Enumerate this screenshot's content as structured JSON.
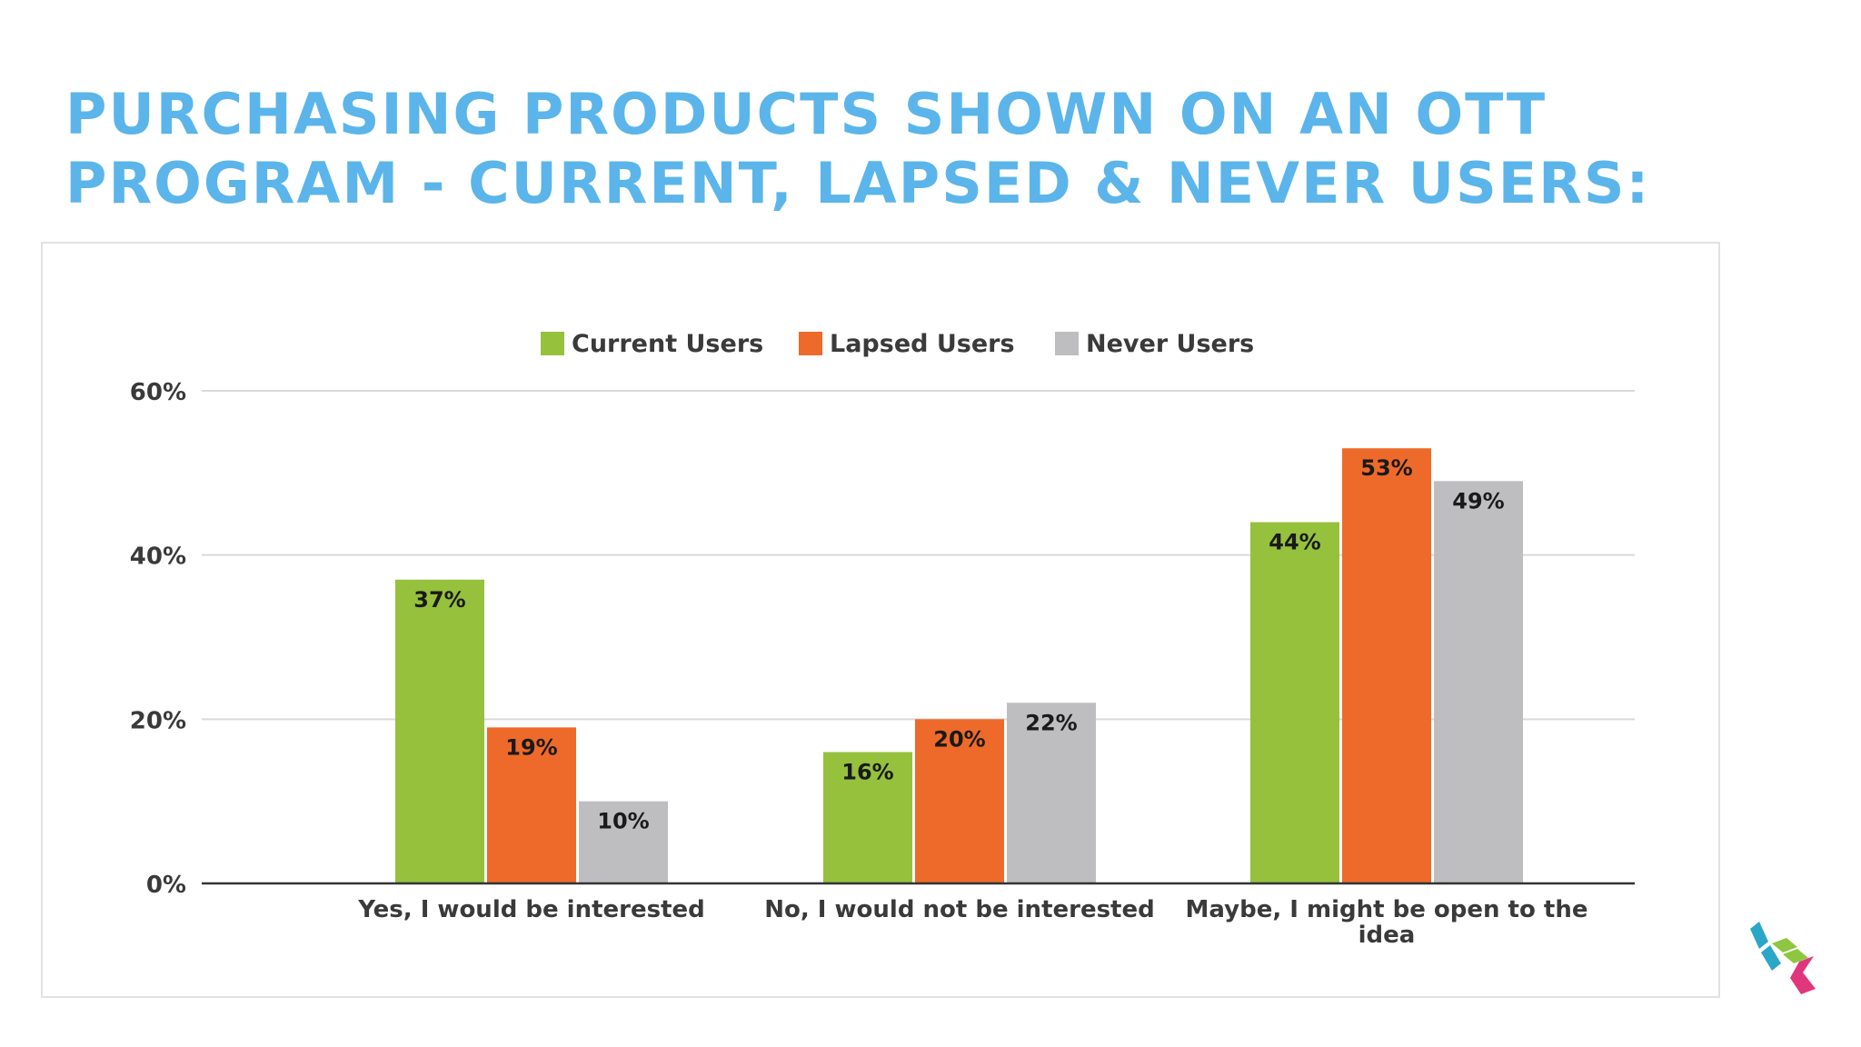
{
  "slide": {
    "title_line1": "PURCHASING PRODUCTS SHOWN ON AN OTT",
    "title_line2": "PROGRAM - CURRENT, LAPSED & NEVER USERS:",
    "title_color": "#5bb5ea"
  },
  "logo": {
    "icon": "cube-logo-icon",
    "colors": [
      "#2aa6c9",
      "#8dc63f",
      "#e0367c"
    ]
  },
  "chart_data": {
    "type": "bar",
    "title": "",
    "xlabel": "",
    "ylabel": "",
    "ylim": [
      0,
      60
    ],
    "yticks": [
      0,
      20,
      40,
      60
    ],
    "ytick_labels": [
      "0%",
      "20%",
      "40%",
      "60%"
    ],
    "grid": true,
    "legend_position": "top-center",
    "categories": [
      [
        "Yes, I would be interested"
      ],
      [
        "No, I would not be interested"
      ],
      [
        "Maybe, I might be open to the",
        "idea"
      ]
    ],
    "series": [
      {
        "name": "Current Users",
        "color": "#95c13d",
        "values": [
          37,
          16,
          44
        ],
        "labels": [
          "37%",
          "16%",
          "44%"
        ]
      },
      {
        "name": "Lapsed Users",
        "color": "#ee6a2a",
        "values": [
          19,
          20,
          53
        ],
        "labels": [
          "19%",
          "20%",
          "53%"
        ]
      },
      {
        "name": "Never Users",
        "color": "#bebdbf",
        "values": [
          10,
          22,
          49
        ],
        "labels": [
          "10%",
          "22%",
          "49%"
        ]
      }
    ]
  }
}
